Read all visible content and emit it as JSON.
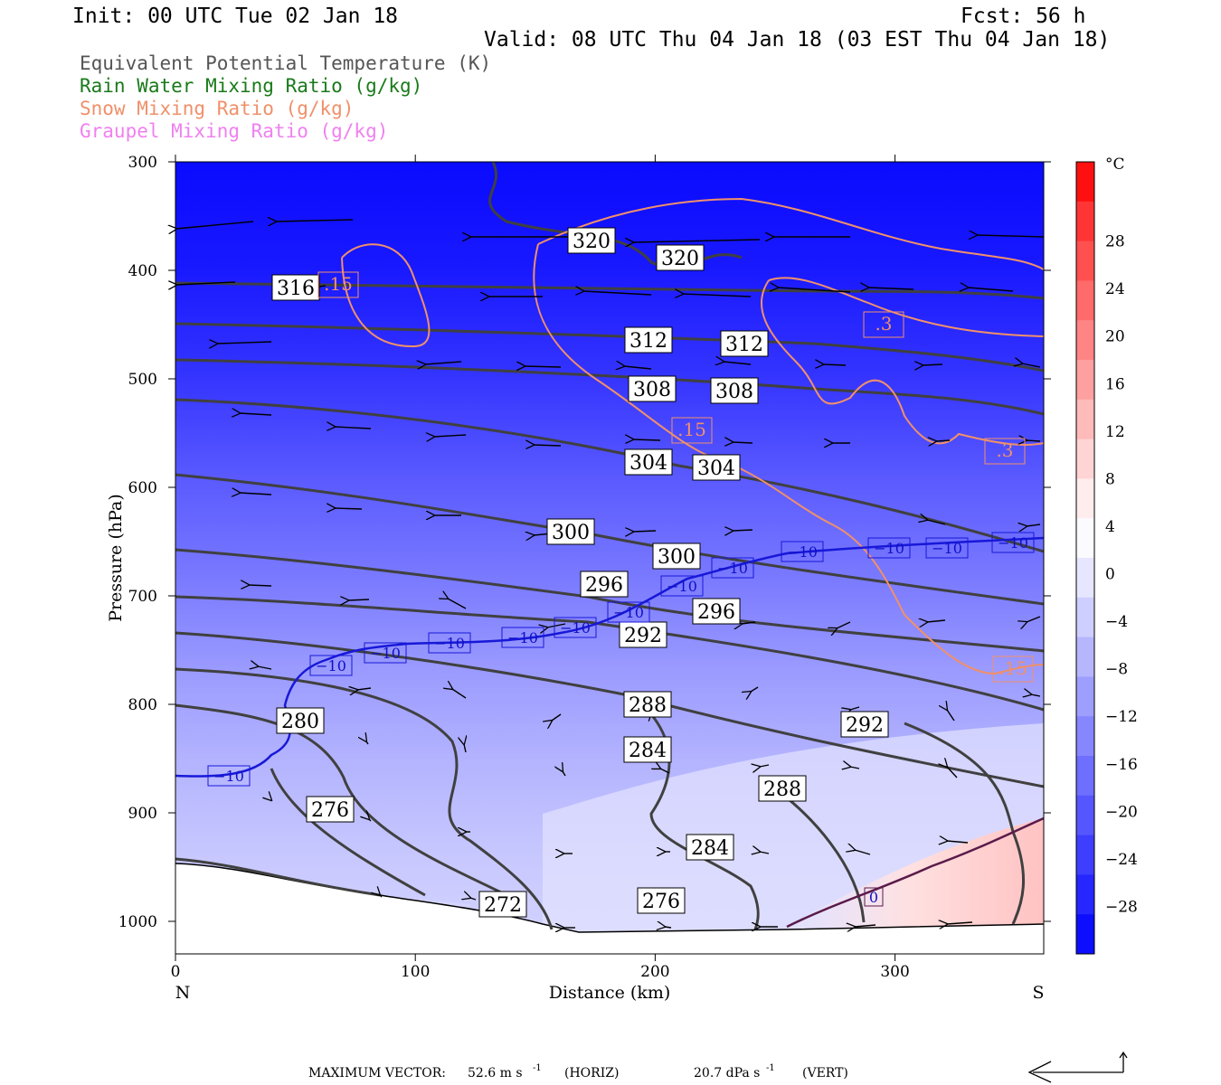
{
  "header": {
    "init": "Init: 00 UTC Tue 02 Jan 18",
    "fcst": "Fcst:   56 h",
    "valid": "Valid: 08 UTC Thu 04 Jan 18 (03 EST Thu 04 Jan 18)"
  },
  "legend": [
    {
      "text": "Equivalent Potential Temperature (K)",
      "color": "#555555"
    },
    {
      "text": "Rain Water Mixing Ratio (g/kg)",
      "color": "#1a7a1a"
    },
    {
      "text": "Snow Mixing Ratio (g/kg)",
      "color": "#f0906a"
    },
    {
      "text": "Graupel Mixing Ratio (g/kg)",
      "color": "#f080f0"
    }
  ],
  "footer": {
    "label": "MAXIMUM VECTOR:",
    "horiz": "52.6 m s",
    "horiz_unit": "(HORIZ)",
    "vert": "20.7 dPa s",
    "vert_unit": "(VERT)",
    "exp": "-1"
  },
  "chart_data": {
    "type": "contour",
    "xlabel": "Distance (km)",
    "ylabel": "Pressure (hPa)",
    "x_ticks": [
      "0",
      "100",
      "200",
      "300"
    ],
    "y_ticks": [
      "300",
      "400",
      "500",
      "600",
      "700",
      "800",
      "900",
      "1000"
    ],
    "xlim": [
      0,
      362
    ],
    "ylim": [
      1030,
      300
    ],
    "left_end_label": "N",
    "right_end_label": "S",
    "colorbar": {
      "unit": "°C",
      "ticks": [
        "28",
        "24",
        "20",
        "16",
        "12",
        "8",
        "4",
        "0",
        "−4",
        "−8",
        "−12",
        "−16",
        "−20",
        "−24",
        "−28"
      ],
      "colors": [
        "#ff1010",
        "#ff3535",
        "#ff5050",
        "#ff6a6a",
        "#ff8585",
        "#ffa0a0",
        "#ffbaba",
        "#ffd4d4",
        "#ffecec",
        "#fafaff",
        "#e6e6ff",
        "#ceceff",
        "#b6b6ff",
        "#9e9eff",
        "#8686ff",
        "#6e6eff",
        "#5656ff",
        "#3e3eff",
        "#2626ff",
        "#0e0eff"
      ]
    },
    "theta_e_labels": [
      "320",
      "320",
      "316",
      "312",
      "312",
      "308",
      "308",
      "304",
      "304",
      "300",
      "300",
      "296",
      "296",
      "292",
      "292",
      "288",
      "288",
      "284",
      "284",
      "280",
      "276",
      "276",
      "272"
    ],
    "temp_labels": [
      "−10",
      "−10",
      "−10",
      "−10",
      "−10",
      "−10",
      "−10",
      "−10",
      "−10",
      "−10",
      "−10",
      "−10",
      "−10",
      "−10",
      "−10"
    ],
    "snow_labels": [
      ".15",
      ".3",
      ".15",
      ".3",
      ".15"
    ],
    "zero_label": "0"
  }
}
